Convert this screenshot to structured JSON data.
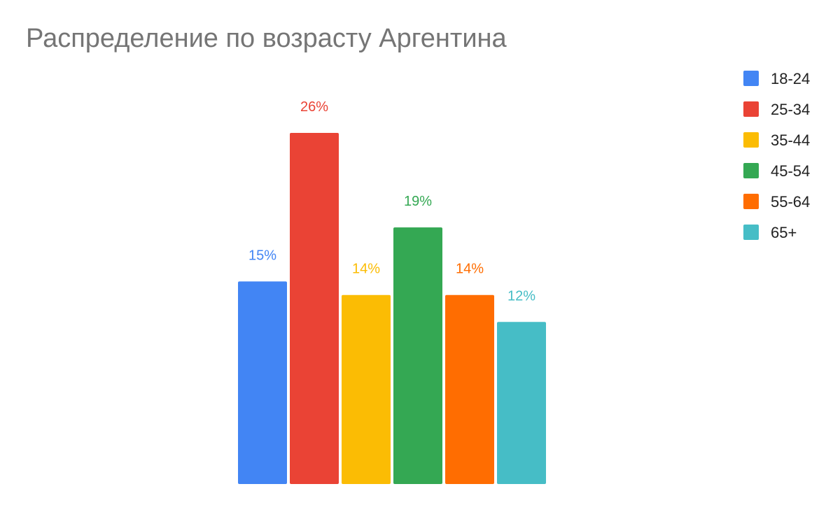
{
  "chart_data": {
    "type": "bar",
    "title": "Распределение по возрасту Аргентина",
    "categories": [
      "18-24",
      "25-34",
      "35-44",
      "45-54",
      "55-64",
      "65+"
    ],
    "values": [
      15,
      26,
      14,
      19,
      14,
      12
    ],
    "data_labels": [
      "15%",
      "26%",
      "14%",
      "19%",
      "14%",
      "12%"
    ],
    "colors": [
      "#4285f4",
      "#ea4335",
      "#fbbc04",
      "#34a853",
      "#ff6d01",
      "#46bdc6"
    ],
    "unit": "%",
    "ylim": [
      0,
      26
    ],
    "grid": false,
    "legend": {
      "position": "right",
      "entries": [
        "18-24",
        "25-34",
        "35-44",
        "45-54",
        "55-64",
        "65+"
      ]
    }
  }
}
